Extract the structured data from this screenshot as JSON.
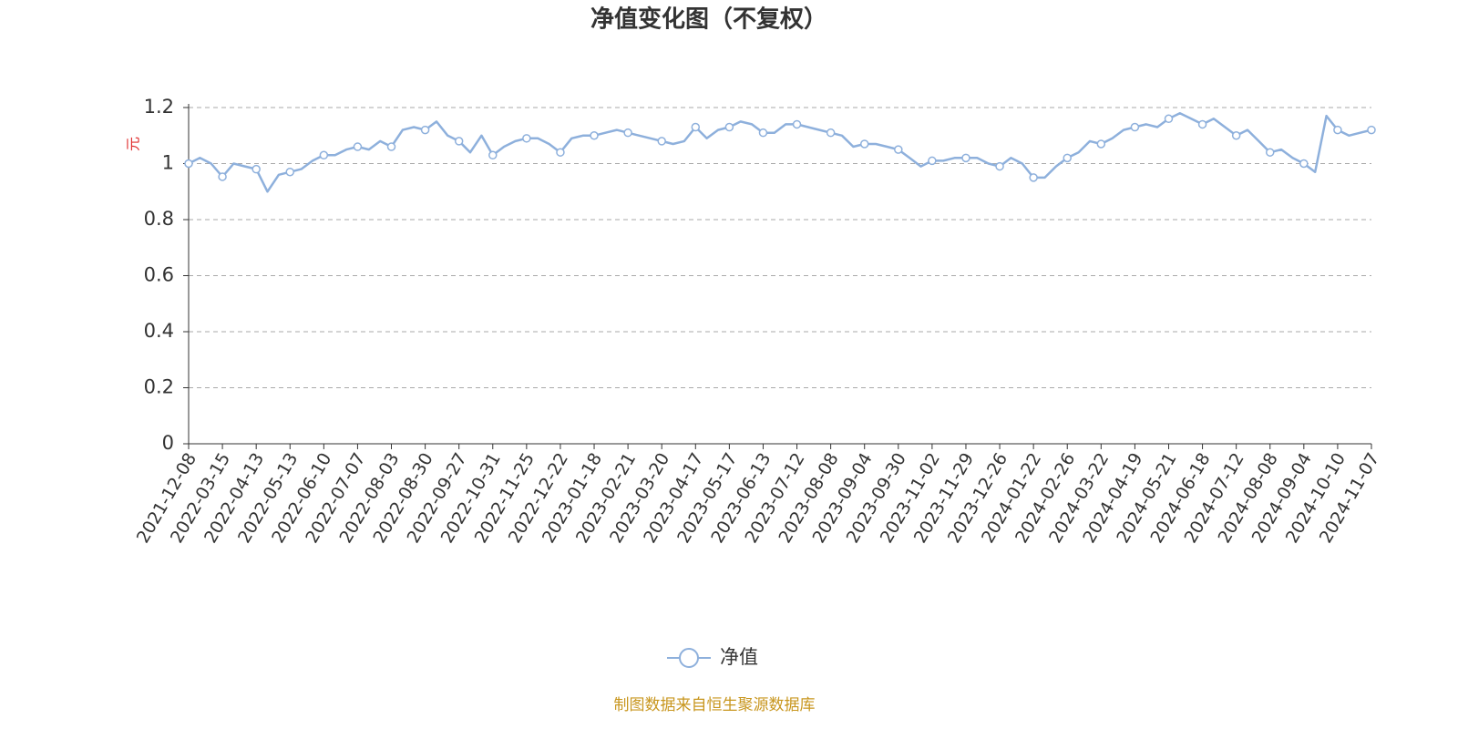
{
  "chart_data": {
    "type": "line",
    "title": "净值变化图（不复权）",
    "y_label": "元",
    "source": "制图数据来自恒生聚源数据库",
    "categories": [
      "2021-12-08",
      null,
      null,
      "2022-03-15",
      null,
      null,
      "2022-04-13",
      null,
      null,
      "2022-05-13",
      null,
      null,
      "2022-06-10",
      null,
      null,
      "2022-07-07",
      null,
      null,
      "2022-08-03",
      null,
      null,
      "2022-08-30",
      null,
      null,
      "2022-09-27",
      null,
      null,
      "2022-10-31",
      null,
      null,
      "2022-11-25",
      null,
      null,
      "2022-12-22",
      null,
      null,
      "2023-01-18",
      null,
      null,
      "2023-02-21",
      null,
      null,
      "2023-03-20",
      null,
      null,
      "2023-04-17",
      null,
      null,
      "2023-05-17",
      null,
      null,
      "2023-06-13",
      null,
      null,
      "2023-07-12",
      null,
      null,
      "2023-08-08",
      null,
      null,
      "2023-09-04",
      null,
      null,
      "2023-09-30",
      null,
      null,
      "2023-11-02",
      null,
      null,
      "2023-11-29",
      null,
      null,
      "2023-12-26",
      null,
      null,
      "2024-01-22",
      null,
      null,
      "2024-02-26",
      null,
      null,
      "2024-03-22",
      null,
      null,
      "2024-04-19",
      null,
      null,
      "2024-05-21",
      null,
      null,
      "2024-06-18",
      null,
      null,
      "2024-07-12",
      null,
      null,
      "2024-08-08",
      null,
      null,
      "2024-09-04",
      null,
      null,
      "2024-10-10",
      null,
      null,
      "2024-11-07"
    ],
    "series": [
      {
        "name": "净值",
        "color": "#8eb0dc",
        "values": [
          1.0,
          1.02,
          1.0,
          0.953,
          1.0,
          0.99,
          0.98,
          0.9,
          0.96,
          0.97,
          0.98,
          1.01,
          1.03,
          1.03,
          1.05,
          1.06,
          1.05,
          1.08,
          1.06,
          1.12,
          1.13,
          1.12,
          1.15,
          1.1,
          1.08,
          1.04,
          1.1,
          1.03,
          1.06,
          1.08,
          1.09,
          1.09,
          1.07,
          1.04,
          1.09,
          1.1,
          1.1,
          1.11,
          1.12,
          1.11,
          1.1,
          1.09,
          1.08,
          1.07,
          1.08,
          1.13,
          1.09,
          1.12,
          1.13,
          1.15,
          1.14,
          1.11,
          1.11,
          1.14,
          1.14,
          1.13,
          1.12,
          1.11,
          1.1,
          1.06,
          1.07,
          1.07,
          1.06,
          1.05,
          1.02,
          0.99,
          1.01,
          1.01,
          1.02,
          1.02,
          1.02,
          1.0,
          0.99,
          1.02,
          1.0,
          0.95,
          0.95,
          0.99,
          1.02,
          1.04,
          1.08,
          1.07,
          1.09,
          1.12,
          1.13,
          1.14,
          1.13,
          1.16,
          1.18,
          1.16,
          1.14,
          1.16,
          1.13,
          1.1,
          1.12,
          1.08,
          1.04,
          1.05,
          1.02,
          1.0,
          0.97,
          1.17,
          1.12,
          1.1,
          1.11,
          1.12
        ]
      }
    ],
    "ylim": [
      0,
      1.2
    ],
    "yticks": [
      0,
      0.2,
      0.4,
      0.6,
      0.8,
      1,
      1.2
    ],
    "grid": true,
    "legend": "bottom"
  }
}
